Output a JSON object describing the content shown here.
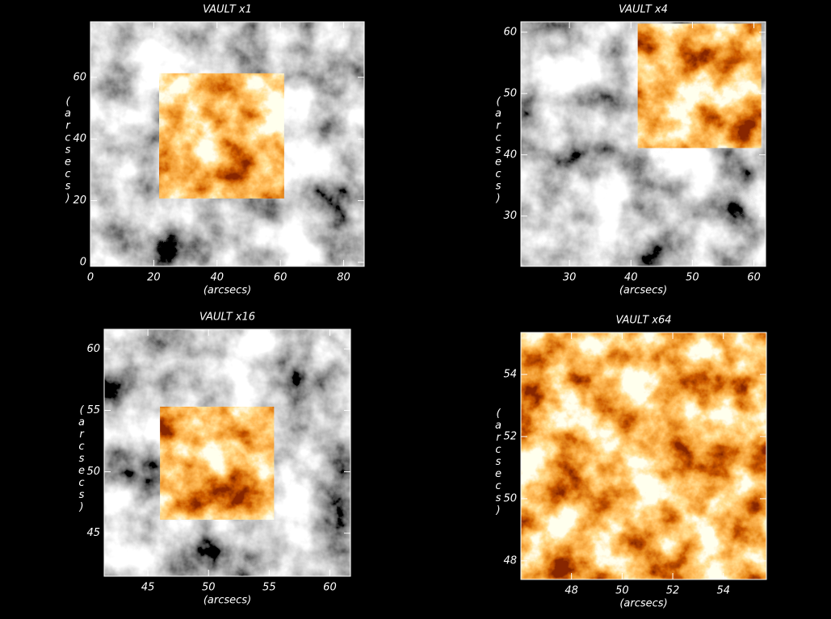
{
  "chart_data": [
    {
      "type": "image",
      "title": "VAULT x1",
      "x_label": "(arcsecs)",
      "y_label": "(arcsecs)",
      "xlim": [
        0,
        86.5
      ],
      "ylim": [
        -1.3,
        78
      ],
      "xticks": [
        0,
        20,
        40,
        60,
        80
      ],
      "yticks": [
        0,
        20,
        40,
        60
      ],
      "inset": {
        "xlim": [
          21.7,
          61.2
        ],
        "ylim": [
          20.7,
          61.3
        ]
      }
    },
    {
      "type": "image",
      "title": "VAULT x4",
      "x_label": "(arcsecs)",
      "y_label": "(arcsecs)",
      "xlim": [
        22.1,
        61.9
      ],
      "ylim": [
        21.8,
        61.7
      ],
      "xticks": [
        30,
        40,
        50,
        60
      ],
      "yticks": [
        30,
        40,
        50,
        60
      ],
      "inset": {
        "xlim": [
          41.1,
          61.2
        ],
        "ylim": [
          41.1,
          61.4
        ]
      }
    },
    {
      "type": "image",
      "title": "VAULT x16",
      "x_label": "(arcsecs)",
      "y_label": "(arcsecs)",
      "xlim": [
        41.4,
        61.7
      ],
      "ylim": [
        41.5,
        61.6
      ],
      "xticks": [
        45,
        50,
        55,
        60
      ],
      "yticks": [
        45,
        50,
        55,
        60
      ],
      "inset": {
        "xlim": [
          46.0,
          55.4
        ],
        "ylim": [
          46.1,
          55.3
        ]
      }
    },
    {
      "type": "image",
      "title": "VAULT x64",
      "x_label": "(arcsecs)",
      "y_label": "(arcsecs)",
      "xlim": [
        46.0,
        55.7
      ],
      "ylim": [
        47.4,
        55.35
      ],
      "xticks": [
        48,
        50,
        52,
        54
      ],
      "yticks": [
        48,
        50,
        52,
        54
      ]
    }
  ]
}
